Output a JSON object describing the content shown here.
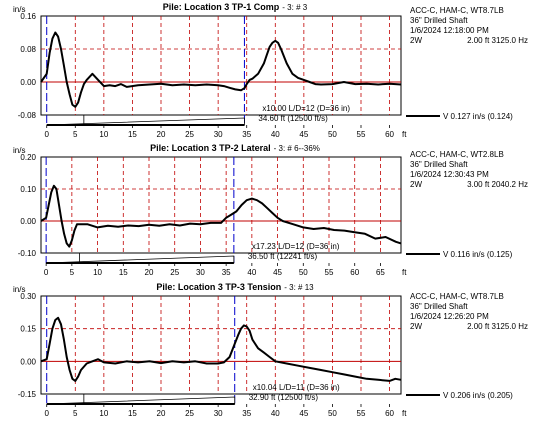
{
  "chart_data": [
    {
      "type": "line",
      "title": "Pile: Location 3 TP-1 Comp",
      "blow_label": "3: # 3",
      "ylabel": "in/s",
      "xlabel": "ft",
      "ylim": [
        -0.08,
        0.16
      ],
      "y_ticks": [
        "0.16",
        "0.08",
        "0.00",
        "-0.08"
      ],
      "y_tick_values": [
        0.16,
        0.08,
        0.0,
        -0.08
      ],
      "xlim": [
        -1,
        62
      ],
      "x_ticks": [
        0,
        5,
        10,
        15,
        20,
        25,
        30,
        35,
        40,
        45,
        50,
        55,
        60
      ],
      "x_labels": [
        "0",
        "5",
        "10",
        "15",
        "20",
        "25",
        "30",
        "35",
        "40",
        "45",
        "50",
        "55",
        "60"
      ],
      "grid": true,
      "marker_2L_ft": 34.6,
      "scale_label": "x10.00  L/D=12 (D=36 in)",
      "length_label": "34.60 ft (12500 ft/s)",
      "series": [
        {
          "name": "",
          "x": [
            -1,
            0,
            0.5,
            1,
            1.5,
            2,
            2.5,
            3,
            3.5,
            4,
            4.5,
            5,
            5.5,
            6,
            6.5,
            7,
            8,
            9,
            10,
            11,
            12,
            13,
            14,
            16,
            18,
            20,
            22,
            24,
            26,
            28,
            30,
            31,
            32,
            33,
            34,
            34.6,
            35,
            35.5,
            36,
            37,
            38,
            38.5,
            39,
            39.5,
            40,
            40.5,
            41,
            42,
            43,
            44,
            45,
            46,
            47,
            48,
            50,
            52,
            54,
            56,
            58,
            60,
            62
          ],
          "y": [
            0.0,
            0.02,
            0.07,
            0.105,
            0.12,
            0.11,
            0.08,
            0.04,
            0.0,
            -0.03,
            -0.055,
            -0.06,
            -0.05,
            -0.025,
            -0.005,
            0.005,
            0.02,
            0.005,
            -0.01,
            -0.008,
            -0.01,
            -0.005,
            -0.012,
            -0.008,
            -0.006,
            -0.004,
            -0.008,
            -0.006,
            -0.008,
            -0.006,
            -0.008,
            -0.01,
            -0.014,
            -0.018,
            -0.02,
            -0.015,
            -0.005,
            0.005,
            0.008,
            0.02,
            0.045,
            0.065,
            0.085,
            0.095,
            0.1,
            0.095,
            0.08,
            0.045,
            0.02,
            0.01,
            0.005,
            0.0,
            -0.005,
            -0.006,
            -0.005,
            0.0,
            -0.005,
            -0.004,
            -0.006,
            -0.004,
            -0.006
          ]
        }
      ],
      "info": {
        "line1": "ACC-C, HAM-C, WT8.7LB",
        "line2": "36\" Drilled Shaft",
        "line3": "1/6/2024 12:18:00 PM",
        "line4_left": "2W",
        "line4_right": "2.00 ft 3125.0 Hz",
        "v_label": "V  0.127 in/s  (0.124)"
      }
    },
    {
      "type": "line",
      "title": "Pile: Location 3 TP-2 Lateral",
      "blow_label": "3: # 6--36%",
      "ylabel": "in/s",
      "xlabel": "ft",
      "ylim": [
        -0.1,
        0.2
      ],
      "y_ticks": [
        "0.20",
        "0.10",
        "0.00",
        "-0.10"
      ],
      "y_tick_values": [
        0.2,
        0.1,
        0.0,
        -0.1
      ],
      "xlim": [
        -1,
        69
      ],
      "x_ticks": [
        0,
        5,
        10,
        15,
        20,
        25,
        30,
        35,
        40,
        45,
        50,
        55,
        60,
        65
      ],
      "x_labels": [
        "0",
        "5",
        "10",
        "15",
        "20",
        "25",
        "30",
        "35",
        "40",
        "45",
        "50",
        "55",
        "60",
        "65"
      ],
      "grid": true,
      "marker_2L_ft": 36.5,
      "scale_label": "x17.23  L/D=12 (D=36 in)",
      "length_label": "36.50 ft (12241 ft/s)",
      "series": [
        {
          "name": "",
          "x": [
            -1,
            0,
            0.5,
            1,
            1.5,
            2,
            2.5,
            3,
            3.5,
            4,
            4.5,
            5,
            5.5,
            6,
            7,
            8,
            10,
            12,
            14,
            16,
            18,
            20,
            22,
            24,
            26,
            28,
            30,
            32,
            34,
            35,
            36,
            37,
            38,
            39,
            40,
            41,
            42,
            43,
            44,
            45,
            46,
            48,
            50,
            52,
            54,
            56,
            58,
            60,
            62,
            64,
            66,
            68,
            69
          ],
          "y": [
            0.0,
            0.01,
            0.05,
            0.09,
            0.11,
            0.1,
            0.05,
            0.0,
            -0.04,
            -0.07,
            -0.08,
            -0.06,
            -0.03,
            -0.01,
            -0.01,
            -0.01,
            -0.02,
            -0.015,
            -0.018,
            -0.014,
            -0.016,
            -0.012,
            -0.015,
            -0.01,
            -0.014,
            -0.008,
            -0.01,
            -0.006,
            -0.006,
            0.01,
            0.02,
            0.03,
            0.05,
            0.065,
            0.07,
            0.065,
            0.055,
            0.04,
            0.025,
            0.01,
            0.0,
            -0.01,
            -0.02,
            -0.025,
            -0.022,
            -0.028,
            -0.03,
            -0.035,
            -0.04,
            -0.055,
            -0.05,
            -0.065,
            -0.07
          ]
        }
      ],
      "info": {
        "line1": "ACC-C, HAM-C, WT2.8LB",
        "line2": "36\" Drilled Shaft",
        "line3": "1/6/2024 12:30:43 PM",
        "line4_left": "2W",
        "line4_right": "3.00 ft 2040.2 Hz",
        "v_label": "V  0.116 in/s  (0.125)"
      }
    },
    {
      "type": "line",
      "title": "Pile: Location 3 TP-3 Tension",
      "blow_label": "3: # 13",
      "ylabel": "in/s",
      "xlabel": "ft",
      "ylim": [
        -0.15,
        0.3
      ],
      "y_ticks": [
        "0.30",
        "0.15",
        "0.00",
        "-0.15"
      ],
      "y_tick_values": [
        0.3,
        0.15,
        0.0,
        -0.15
      ],
      "xlim": [
        -1,
        62
      ],
      "x_ticks": [
        0,
        5,
        10,
        15,
        20,
        25,
        30,
        35,
        40,
        45,
        50,
        55,
        60
      ],
      "x_labels": [
        "0",
        "5",
        "10",
        "15",
        "20",
        "25",
        "30",
        "35",
        "40",
        "45",
        "50",
        "55",
        "60"
      ],
      "grid": true,
      "marker_2L_ft": 32.9,
      "scale_label": "x10.04  L/D=11 (D=36 in)",
      "length_label": "32.90 ft (12500 ft/s)",
      "series": [
        {
          "name": "",
          "x": [
            -1,
            0,
            0.5,
            1,
            1.5,
            2,
            2.5,
            3,
            3.5,
            4,
            4.5,
            5,
            5.5,
            6,
            7,
            8,
            9,
            10,
            12,
            14,
            16,
            18,
            20,
            22,
            24,
            26,
            28,
            30,
            31,
            32,
            32.9,
            33.5,
            34,
            34.5,
            35,
            35.5,
            36,
            37,
            38,
            39,
            40,
            42,
            44,
            46,
            48,
            50,
            52,
            54,
            56,
            58,
            60,
            61,
            62
          ],
          "y": [
            0.0,
            0.01,
            0.08,
            0.15,
            0.19,
            0.2,
            0.17,
            0.1,
            0.02,
            -0.04,
            -0.08,
            -0.09,
            -0.07,
            -0.04,
            -0.01,
            0.0,
            0.01,
            -0.005,
            -0.01,
            0.0,
            -0.005,
            0.0,
            -0.008,
            0.0,
            -0.005,
            0.0,
            -0.01,
            -0.01,
            -0.005,
            0.02,
            0.08,
            0.12,
            0.15,
            0.165,
            0.16,
            0.14,
            0.1,
            0.06,
            0.04,
            0.02,
            0.0,
            -0.01,
            -0.02,
            -0.03,
            -0.04,
            -0.05,
            -0.06,
            -0.07,
            -0.08,
            -0.085,
            -0.09,
            -0.08,
            -0.085
          ]
        }
      ],
      "info": {
        "line1": "ACC-C, HAM-C, WT8.7LB",
        "line2": "36\" Drilled Shaft",
        "line3": "1/6/2024 12:26:20 PM",
        "line4_left": "2W",
        "line4_right": "2.00 ft 3125.0 Hz",
        "v_label": "V  0.206 in/s  (0.205)"
      }
    }
  ]
}
